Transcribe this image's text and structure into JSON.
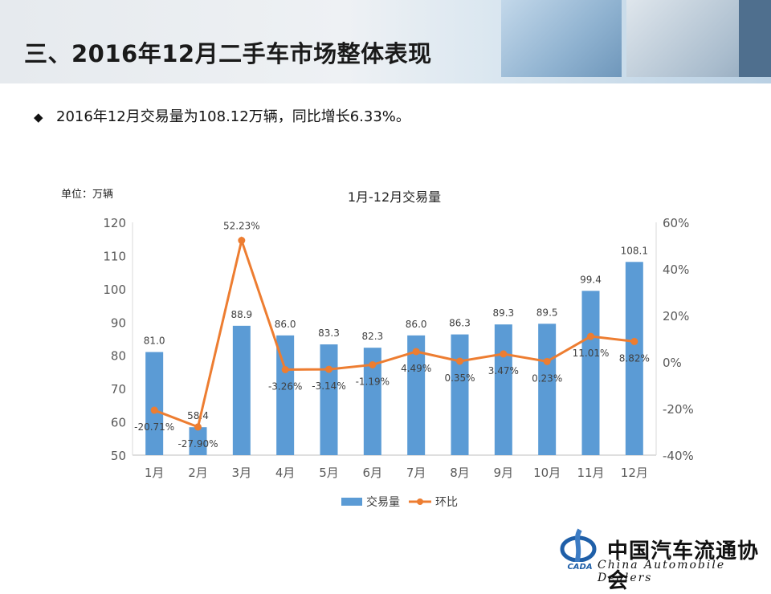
{
  "slide": {
    "title": "三、2016年12月二手车市场整体表现",
    "bullet_symbol": "◆",
    "bullet_text": "2016年12月交易量为108.12万辆，同比增长6.33%。",
    "unit_label": "单位：万辆"
  },
  "logo": {
    "emblem_text": "CADA",
    "name_cn": "中国汽车流通协会",
    "name_en": "China  Automobile Dealers"
  },
  "chart_data": {
    "type": "bar",
    "title": "1月-12月交易量",
    "categories": [
      "1月",
      "2月",
      "3月",
      "4月",
      "5月",
      "6月",
      "7月",
      "8月",
      "9月",
      "10月",
      "11月",
      "12月"
    ],
    "series": [
      {
        "name": "交易量",
        "type": "bar",
        "axis": "left",
        "color": "#5b9bd5",
        "values": [
          81.0,
          58.4,
          88.9,
          86.0,
          83.3,
          82.3,
          86.0,
          86.3,
          89.3,
          89.5,
          99.4,
          108.1
        ],
        "labels": [
          "81.0",
          "58.4",
          "88.9",
          "86.0",
          "83.3",
          "82.3",
          "86.0",
          "86.3",
          "89.3",
          "89.5",
          "99.4",
          "108.1"
        ]
      },
      {
        "name": "环比",
        "type": "line",
        "axis": "right",
        "color": "#ed7d31",
        "values": [
          -20.71,
          -27.9,
          52.23,
          -3.26,
          -3.14,
          -1.19,
          4.49,
          0.35,
          3.47,
          0.23,
          11.01,
          8.82
        ],
        "labels": [
          "-20.71%",
          "-27.90%",
          "52.23%",
          "-3.26%",
          "-3.14%",
          "-1.19%",
          "4.49%",
          "0.35%",
          "3.47%",
          "0.23%",
          "11.01%",
          "8.82%"
        ]
      }
    ],
    "y_left": {
      "min": 50,
      "max": 120,
      "ticks": [
        "50",
        "60",
        "70",
        "80",
        "90",
        "100",
        "110",
        "120"
      ]
    },
    "y_right": {
      "min": -40,
      "max": 60,
      "ticks": [
        "-40%",
        "-20%",
        "0%",
        "20%",
        "40%",
        "60%"
      ]
    },
    "legend_position": "bottom",
    "grid": false
  }
}
